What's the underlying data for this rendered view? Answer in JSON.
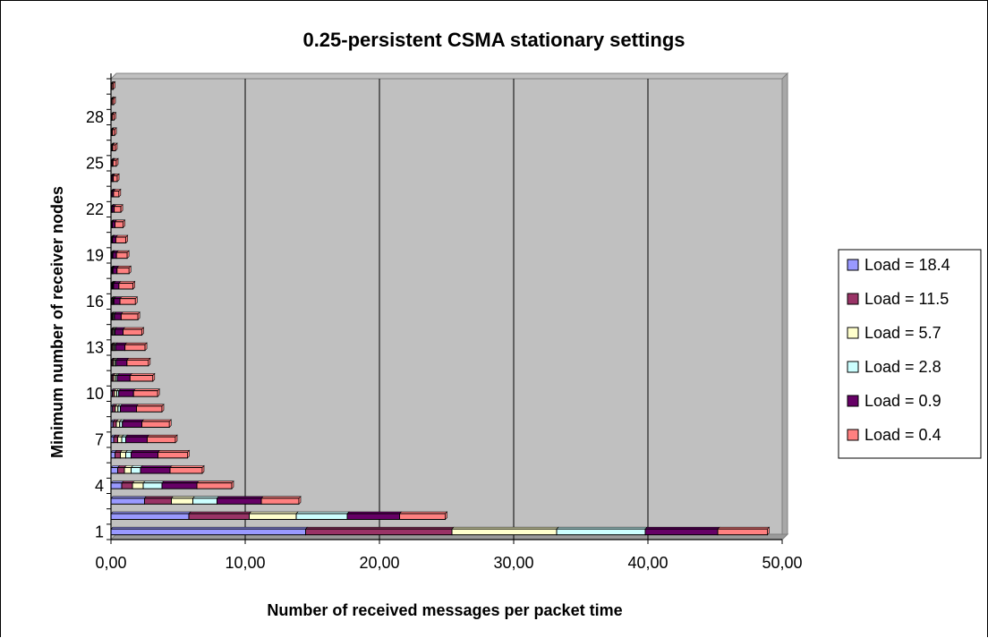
{
  "chart_data": {
    "type": "bar",
    "orientation": "horizontal",
    "stacked": true,
    "title": "0.25-persistent CSMA stationary settings",
    "xlabel": "Number of received messages per packet time",
    "ylabel": "Minimum number of receiver nodes",
    "xlim": [
      0,
      50
    ],
    "x_ticks": [
      "0,00",
      "10,00",
      "20,00",
      "30,00",
      "40,00",
      "50,00"
    ],
    "x_tick_values": [
      0,
      10,
      20,
      30,
      40,
      50
    ],
    "y_tick_labels": [
      "1",
      "4",
      "7",
      "10",
      "13",
      "16",
      "19",
      "22",
      "25",
      "28"
    ],
    "categories": [
      "1",
      "2",
      "3",
      "4",
      "5",
      "6",
      "7",
      "8",
      "9",
      "10",
      "11",
      "12",
      "13",
      "14",
      "15",
      "16",
      "17",
      "18",
      "19",
      "20",
      "21",
      "22",
      "23",
      "24",
      "25",
      "26",
      "27",
      "28",
      "29",
      "30"
    ],
    "grid": "vertical major gridlines",
    "legend_position": "right",
    "series": [
      {
        "name": "Load = 18.4",
        "color": "#9999FF",
        "values": [
          14.5,
          5.8,
          2.5,
          0.8,
          0.5,
          0.3,
          0.2,
          0.15,
          0.12,
          0.1,
          0.08,
          0.07,
          0.06,
          0.05,
          0.04,
          0.03,
          0.03,
          0.02,
          0.02,
          0.02,
          0.01,
          0.01,
          0.01,
          0.01,
          0.01,
          0.01,
          0.01,
          0.01,
          0.01,
          0.01
        ]
      },
      {
        "name": "Load = 11.5",
        "color": "#993366",
        "values": [
          10.9,
          4.5,
          2.0,
          0.8,
          0.5,
          0.4,
          0.3,
          0.25,
          0.2,
          0.15,
          0.12,
          0.1,
          0.09,
          0.08,
          0.07,
          0.06,
          0.05,
          0.04,
          0.04,
          0.03,
          0.03,
          0.02,
          0.02,
          0.02,
          0.02,
          0.01,
          0.01,
          0.01,
          0.01,
          0.01
        ]
      },
      {
        "name": "Load = 5.7",
        "color": "#FFFFCC",
        "values": [
          7.8,
          3.5,
          1.6,
          0.8,
          0.5,
          0.4,
          0.3,
          0.25,
          0.2,
          0.18,
          0.15,
          0.12,
          0.1,
          0.09,
          0.08,
          0.07,
          0.06,
          0.05,
          0.04,
          0.04,
          0.03,
          0.03,
          0.02,
          0.02,
          0.02,
          0.02,
          0.01,
          0.01,
          0.01,
          0.01
        ]
      },
      {
        "name": "Load = 2.8",
        "color": "#CCFFFF",
        "values": [
          6.6,
          3.8,
          1.8,
          1.4,
          0.7,
          0.4,
          0.3,
          0.2,
          0.18,
          0.15,
          0.12,
          0.1,
          0.09,
          0.08,
          0.07,
          0.06,
          0.05,
          0.04,
          0.04,
          0.03,
          0.03,
          0.02,
          0.02,
          0.02,
          0.02,
          0.02,
          0.01,
          0.01,
          0.01,
          0.01
        ]
      },
      {
        "name": "Load = 0.9",
        "color": "#660066",
        "values": [
          5.4,
          3.9,
          3.3,
          2.6,
          2.2,
          2.0,
          1.6,
          1.45,
          1.2,
          1.1,
          0.95,
          0.8,
          0.7,
          0.6,
          0.5,
          0.45,
          0.4,
          0.3,
          0.27,
          0.24,
          0.2,
          0.16,
          0.12,
          0.1,
          0.08,
          0.07,
          0.06,
          0.05,
          0.04,
          0.03
        ]
      },
      {
        "name": "Load = 0.4",
        "color": "#FF8080",
        "values": [
          3.7,
          3.4,
          2.8,
          2.6,
          2.4,
          2.2,
          2.1,
          2.05,
          1.9,
          1.8,
          1.7,
          1.6,
          1.5,
          1.4,
          1.25,
          1.15,
          1.05,
          0.9,
          0.8,
          0.75,
          0.6,
          0.5,
          0.4,
          0.3,
          0.25,
          0.2,
          0.17,
          0.14,
          0.12,
          0.1
        ]
      }
    ]
  }
}
